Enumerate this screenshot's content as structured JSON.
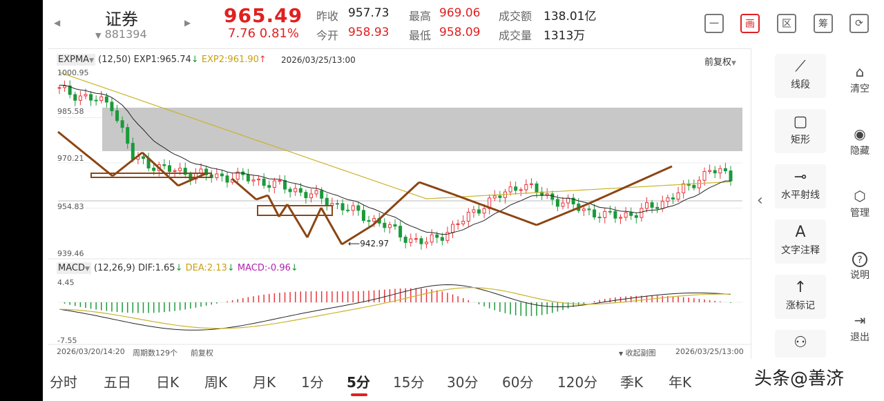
{
  "header": {
    "name": "证券",
    "code": "881394",
    "price": "965.49",
    "change": "7.76  0.81%",
    "quotes": [
      {
        "label": "昨收",
        "value": "957.73",
        "color": "dark"
      },
      {
        "label": "今开",
        "value": "958.93",
        "color": "red"
      },
      {
        "label": "最高",
        "value": "969.06",
        "color": "red"
      },
      {
        "label": "最低",
        "value": "958.09",
        "color": "red"
      },
      {
        "label": "成交额",
        "value": "138.01亿",
        "color": "dark"
      },
      {
        "label": "成交量",
        "value": "1313万",
        "color": "dark"
      }
    ],
    "tools": [
      {
        "icon": "minus-box-icon",
        "glyph": "一"
      },
      {
        "icon": "draw-icon",
        "glyph": "画"
      },
      {
        "icon": "range-icon",
        "glyph": "区"
      },
      {
        "icon": "chip-icon",
        "glyph": "筹"
      },
      {
        "icon": "landscape-icon",
        "glyph": "⟳"
      }
    ]
  },
  "chart": {
    "main_legend": {
      "indicator": "EXPMA",
      "params": "(12,50)",
      "exp1": "EXP1:965.74",
      "exp2": "EXP2:961.90",
      "datetime": "2026/03/25/13:00",
      "adjust": "前复权"
    },
    "y_ticks": [
      "1000.95",
      "985.58",
      "970.21",
      "954.83",
      "939.46"
    ],
    "low_label": "942.97",
    "macd_legend": {
      "indicator": "MACD",
      "params": "(12,26,9)",
      "dif": "DIF:1.65",
      "dea": "DEA:2.13",
      "macd": "MACD:-0.96"
    },
    "macd_ticks": [
      "4.45",
      "-7.55"
    ],
    "footer": {
      "start": "2026/03/20/14:20",
      "period_count": "周期数129个",
      "adjust": "前复权",
      "collapse": "收起副图",
      "end": "2026/03/25/13:00"
    },
    "colors": {
      "up": "#e8343a",
      "down": "#1a9a3a",
      "exp1": "#222222",
      "exp2": "#c9b32a",
      "draw": "#8b4513"
    }
  },
  "right_panel": {
    "tools": [
      {
        "icon": "segment-icon",
        "glyph": "⟋",
        "label": "线段"
      },
      {
        "icon": "rectangle-icon",
        "glyph": "▢",
        "label": "矩形"
      },
      {
        "icon": "horizontal-ray-icon",
        "glyph": "⊸",
        "label": "水平射线"
      },
      {
        "icon": "text-note-icon",
        "glyph": "A",
        "label": "文字注释"
      },
      {
        "icon": "up-arrow-icon",
        "glyph": "↑",
        "label": "涨标记"
      },
      {
        "icon": "run-icon",
        "glyph": "⚇",
        "label": ""
      }
    ],
    "side": [
      {
        "icon": "clear-icon",
        "glyph": "🗑",
        "label": "清空"
      },
      {
        "icon": "eye-icon",
        "glyph": "◉",
        "label": "隐藏"
      },
      {
        "icon": "manage-icon",
        "glyph": "⬡",
        "label": "管理"
      },
      {
        "icon": "help-icon",
        "glyph": "?",
        "label": "说明"
      },
      {
        "icon": "exit-icon",
        "glyph": "⇥",
        "label": "退出"
      }
    ],
    "collapse_glyph": "‹"
  },
  "tabs": [
    "分时",
    "五日",
    "日K",
    "周K",
    "月K",
    "1分",
    "5分",
    "15分",
    "30分",
    "60分",
    "120分",
    "季K",
    "年K"
  ],
  "active_tab": "5分",
  "watermark": "头条@善济"
}
